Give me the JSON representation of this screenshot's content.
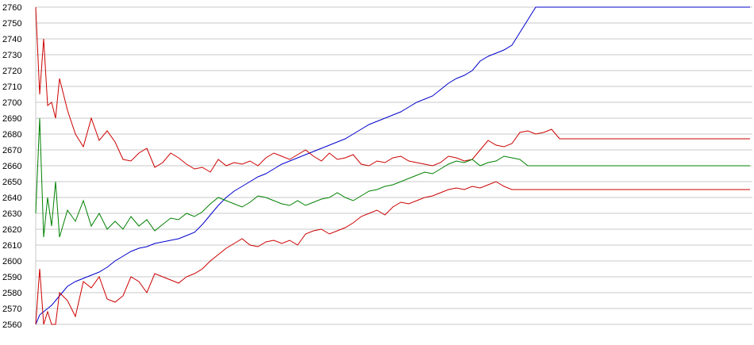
{
  "chart_data": {
    "type": "line",
    "title": "",
    "xlabel": "",
    "ylabel": "",
    "ylim": [
      2560,
      2760
    ],
    "yticks": [
      2760,
      2750,
      2740,
      2730,
      2720,
      2710,
      2700,
      2690,
      2680,
      2670,
      2660,
      2650,
      2640,
      2630,
      2620,
      2610,
      2600,
      2590,
      2580,
      2570,
      2560
    ],
    "grid": true,
    "legend": "none",
    "x": [
      0,
      5,
      10,
      15,
      20,
      25,
      30,
      40,
      50,
      60,
      70,
      80,
      90,
      100,
      110,
      120,
      130,
      140,
      150,
      160,
      170,
      180,
      190,
      200,
      210,
      220,
      230,
      240,
      250,
      260,
      270,
      280,
      290,
      300,
      310,
      320,
      330,
      340,
      350,
      360,
      370,
      380,
      390,
      400,
      410,
      420,
      430,
      440,
      450,
      460,
      470,
      480,
      490,
      500,
      510,
      520,
      530,
      540,
      550,
      560,
      570,
      580,
      590,
      600,
      610,
      620,
      630,
      640,
      650,
      660,
      670,
      680,
      690,
      700,
      710,
      720,
      730,
      740,
      750,
      760,
      770,
      780,
      790,
      800,
      810,
      820,
      830,
      840,
      850,
      860,
      870,
      880,
      890,
      900
    ],
    "series": [
      {
        "color": "#0000cc",
        "values": [
          2560,
          2566,
          2568,
          2570,
          2572,
          2575,
          2578,
          2584,
          2587,
          2589,
          2591,
          2593,
          2596,
          2600,
          2603,
          2606,
          2608,
          2609,
          2611,
          2612,
          2613,
          2614,
          2616,
          2618,
          2623,
          2629,
          2635,
          2640,
          2644,
          2647,
          2650,
          2653,
          2655,
          2658,
          2661,
          2663,
          2665,
          2667,
          2669,
          2671,
          2673,
          2675,
          2677,
          2680,
          2683,
          2686,
          2688,
          2690,
          2692,
          2694,
          2697,
          2700,
          2702,
          2704,
          2708,
          2712,
          2715,
          2717,
          2720,
          2726,
          2729,
          2731,
          2733,
          2736,
          2744,
          2752,
          2760,
          2760,
          2760,
          2760,
          2760,
          2760,
          2760,
          2760,
          2760,
          2760,
          2760,
          2760,
          2760,
          2760,
          2760,
          2760,
          2760,
          2760,
          2760,
          2760,
          2760,
          2760,
          2760,
          2760,
          2760,
          2760,
          2760,
          2760
        ]
      },
      {
        "color": "#cc0000",
        "values": [
          2760,
          2705,
          2740,
          2698,
          2700,
          2690,
          2715,
          2695,
          2680,
          2672,
          2690,
          2676,
          2682,
          2675,
          2664,
          2663,
          2668,
          2671,
          2659,
          2662,
          2668,
          2665,
          2661,
          2658,
          2659,
          2656,
          2664,
          2660,
          2662,
          2661,
          2663,
          2660,
          2665,
          2668,
          2666,
          2664,
          2667,
          2670,
          2666,
          2663,
          2668,
          2664,
          2665,
          2667,
          2661,
          2660,
          2663,
          2662,
          2665,
          2666,
          2663,
          2662,
          2661,
          2660,
          2662,
          2666,
          2665,
          2663,
          2664,
          2670,
          2676,
          2673,
          2672,
          2674,
          2681,
          2682,
          2680,
          2681,
          2683,
          2677,
          2677,
          2677,
          2677,
          2677,
          2677,
          2677,
          2677,
          2677,
          2677,
          2677,
          2677,
          2677,
          2677,
          2677,
          2677,
          2677,
          2677,
          2677,
          2677,
          2677,
          2677,
          2677,
          2677,
          2677
        ]
      },
      {
        "color": "#008000",
        "values": [
          2630,
          2690,
          2615,
          2640,
          2622,
          2650,
          2615,
          2632,
          2625,
          2638,
          2622,
          2630,
          2620,
          2625,
          2620,
          2628,
          2622,
          2626,
          2619,
          2623,
          2627,
          2626,
          2630,
          2628,
          2631,
          2636,
          2640,
          2638,
          2636,
          2634,
          2637,
          2641,
          2640,
          2638,
          2636,
          2635,
          2638,
          2635,
          2637,
          2639,
          2640,
          2643,
          2640,
          2638,
          2641,
          2644,
          2645,
          2647,
          2648,
          2650,
          2652,
          2654,
          2656,
          2655,
          2658,
          2661,
          2663,
          2662,
          2664,
          2660,
          2662,
          2663,
          2666,
          2665,
          2664,
          2660,
          2660,
          2660,
          2660,
          2660,
          2660,
          2660,
          2660,
          2660,
          2660,
          2660,
          2660,
          2660,
          2660,
          2660,
          2660,
          2660,
          2660,
          2660,
          2660,
          2660,
          2660,
          2660,
          2660,
          2660,
          2660,
          2660,
          2660,
          2660
        ]
      },
      {
        "color": "#cc0000",
        "values": [
          2560,
          2595,
          2560,
          2568,
          2560,
          2560,
          2580,
          2575,
          2565,
          2587,
          2583,
          2590,
          2576,
          2574,
          2578,
          2590,
          2587,
          2580,
          2592,
          2590,
          2588,
          2586,
          2590,
          2592,
          2595,
          2600,
          2604,
          2608,
          2611,
          2614,
          2610,
          2609,
          2612,
          2613,
          2611,
          2613,
          2610,
          2617,
          2619,
          2620,
          2617,
          2619,
          2621,
          2624,
          2628,
          2630,
          2632,
          2629,
          2634,
          2637,
          2636,
          2638,
          2640,
          2641,
          2643,
          2645,
          2646,
          2645,
          2647,
          2646,
          2648,
          2650,
          2647,
          2645,
          2645,
          2645,
          2645,
          2645,
          2645,
          2645,
          2645,
          2645,
          2645,
          2645,
          2645,
          2645,
          2645,
          2645,
          2645,
          2645,
          2645,
          2645,
          2645,
          2645,
          2645,
          2645,
          2645,
          2645,
          2645,
          2645,
          2645,
          2645,
          2645,
          2645
        ]
      }
    ]
  }
}
